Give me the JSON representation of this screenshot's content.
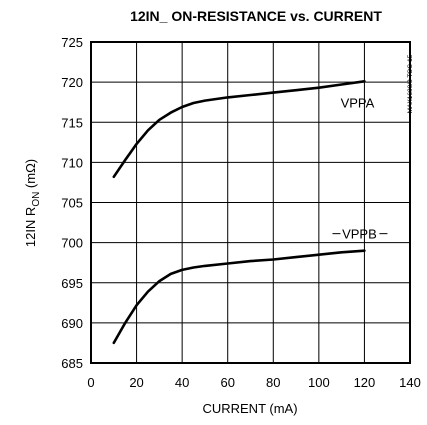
{
  "chart_data": {
    "type": "line",
    "title": "12IN_  ON-RESISTANCE vs. CURRENT",
    "xlabel": "CURRENT (mA)",
    "ylabel_main": "12IN R",
    "ylabel_sub": "ON",
    "ylabel_unit": " (mΩ)",
    "xlim": [
      0,
      140
    ],
    "ylim": [
      685,
      725
    ],
    "xticks": [
      0,
      20,
      40,
      60,
      80,
      100,
      120,
      140
    ],
    "yticks": [
      685,
      690,
      695,
      700,
      705,
      710,
      715,
      720,
      725
    ],
    "grid": true,
    "figure_code": "MAX1600/3 TOC-15",
    "series": [
      {
        "name": "VPPA",
        "x": [
          10,
          15,
          20,
          25,
          30,
          35,
          40,
          45,
          50,
          60,
          70,
          80,
          90,
          100,
          110,
          120
        ],
        "y": [
          708.2,
          710.3,
          712.3,
          714.0,
          715.3,
          716.2,
          716.9,
          717.4,
          717.7,
          718.1,
          718.4,
          718.7,
          719.0,
          719.3,
          719.7,
          720.1
        ]
      },
      {
        "name": "VPPB",
        "x": [
          10,
          15,
          20,
          25,
          30,
          35,
          40,
          45,
          50,
          60,
          70,
          80,
          90,
          100,
          110,
          120
        ],
        "y": [
          687.5,
          690.0,
          692.2,
          693.9,
          695.2,
          696.1,
          696.6,
          696.9,
          697.1,
          697.4,
          697.7,
          697.9,
          698.2,
          698.5,
          698.8,
          699.0
        ]
      }
    ]
  }
}
